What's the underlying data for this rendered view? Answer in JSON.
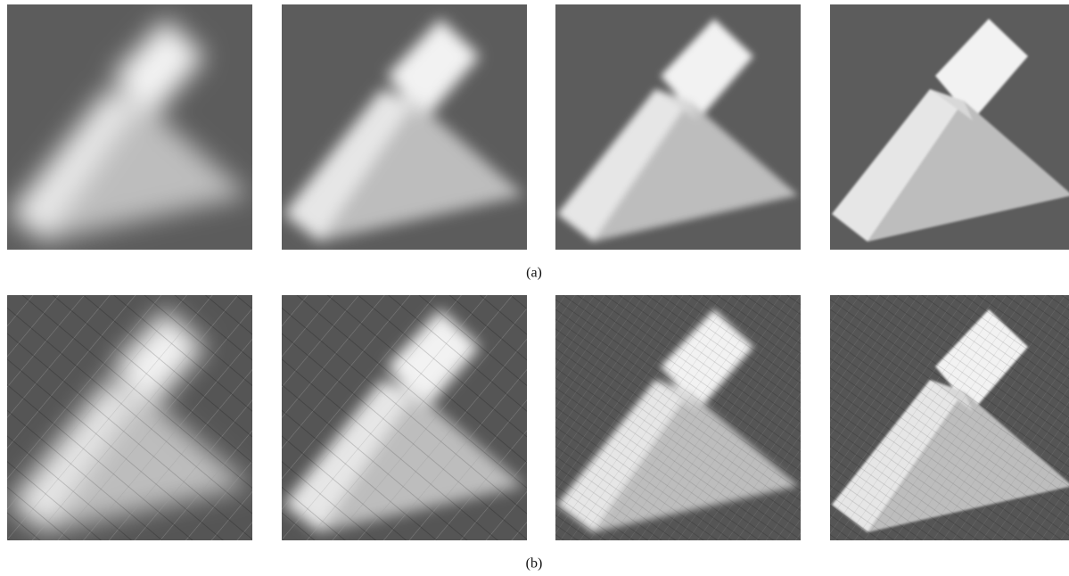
{
  "figure": {
    "rows": [
      {
        "label": "(a)"
      },
      {
        "label": "(b)"
      }
    ]
  }
}
